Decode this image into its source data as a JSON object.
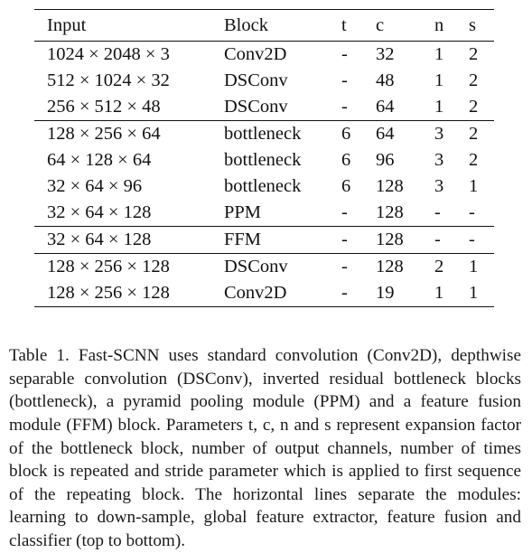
{
  "table": {
    "headers": [
      "Input",
      "Block",
      "t",
      "c",
      "n",
      "s"
    ],
    "groups": [
      {
        "module": "learning to down-sample",
        "rows": [
          {
            "input": "1024 × 2048 × 3",
            "block": "Conv2D",
            "t": "-",
            "c": "32",
            "n": "1",
            "s": "2"
          },
          {
            "input": "512 × 1024 × 32",
            "block": "DSConv",
            "t": "-",
            "c": "48",
            "n": "1",
            "s": "2"
          },
          {
            "input": "256 × 512 × 48",
            "block": "DSConv",
            "t": "-",
            "c": "64",
            "n": "1",
            "s": "2"
          }
        ]
      },
      {
        "module": "global feature extractor",
        "rows": [
          {
            "input": "128 × 256 × 64",
            "block": "bottleneck",
            "t": "6",
            "c": "64",
            "n": "3",
            "s": "2"
          },
          {
            "input": "64 × 128 × 64",
            "block": "bottleneck",
            "t": "6",
            "c": "96",
            "n": "3",
            "s": "2"
          },
          {
            "input": "32 × 64 × 96",
            "block": "bottleneck",
            "t": "6",
            "c": "128",
            "n": "3",
            "s": "1"
          },
          {
            "input": "32 × 64 × 128",
            "block": "PPM",
            "t": "-",
            "c": "128",
            "n": "-",
            "s": "-"
          }
        ]
      },
      {
        "module": "feature fusion",
        "rows": [
          {
            "input": "32 × 64 × 128",
            "block": "FFM",
            "t": "-",
            "c": "128",
            "n": "-",
            "s": "-"
          }
        ]
      },
      {
        "module": "classifier",
        "rows": [
          {
            "input": "128 × 256 × 128",
            "block": "DSConv",
            "t": "-",
            "c": "128",
            "n": "2",
            "s": "1"
          },
          {
            "input": "128 × 256 × 128",
            "block": "Conv2D",
            "t": "-",
            "c": "19",
            "n": "1",
            "s": "1"
          }
        ]
      }
    ]
  },
  "caption": "Table 1. Fast-SCNN uses standard convolution (Conv2D), depthwise separable convolution (DSConv), inverted residual bottleneck blocks (bottleneck), a pyramid pooling module (PPM) and a feature fusion module (FFM) block. Parameters t, c, n and s represent expansion factor of the bottleneck block, number of output channels, number of times block is repeated and stride parameter which is applied to first sequence of the repeating block. The horizontal lines separate the modules: learning to down-sample, global feature extractor, feature fusion and classifier (top to bottom)."
}
